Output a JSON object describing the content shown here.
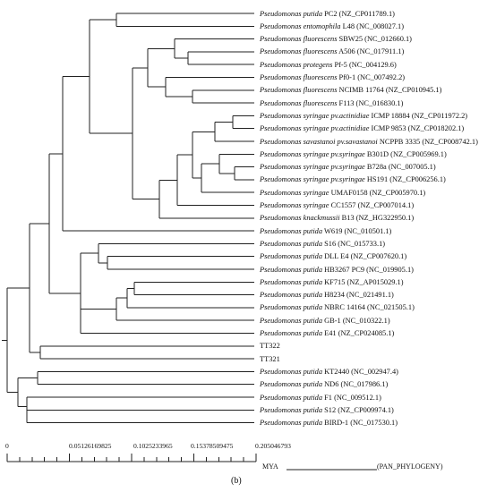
{
  "leaves": [
    {
      "genus": "Pseudomonas",
      "species": "putida",
      "strain": "PC2 (NZ_CP011789.1)"
    },
    {
      "genus": "Pseudomonas",
      "species": "entomophila",
      "strain": "L48 (NC_008027.1)"
    },
    {
      "genus": "Pseudomonas",
      "species": "fluorescens",
      "strain": "SBW25 (NC_012660.1)"
    },
    {
      "genus": "Pseudomonas",
      "species": "fluorescens",
      "strain": "A506 (NC_017911.1)"
    },
    {
      "genus": "Pseudomonas",
      "species": "protegens",
      "strain": "Pf-5 (NC_004129.6)"
    },
    {
      "genus": "Pseudomonas",
      "species": "fluorescens",
      "strain": "Pf0-1 (NC_007492.2)"
    },
    {
      "genus": "Pseudomonas",
      "species": "fluorescens",
      "strain": "NCIMB 11764 (NZ_CP010945.1)"
    },
    {
      "genus": "Pseudomonas",
      "species": "fluorescens",
      "strain": "F113 (NC_016830.1)"
    },
    {
      "genus": "Pseudomonas",
      "species": "syringae pv.actinidiae",
      "strain": "ICMP 18884 (NZ_CP011972.2)"
    },
    {
      "genus": "Pseudomonas",
      "species": "syringae pv.actinidiae",
      "strain": "ICMP 9853 (NZ_CP018202.1)"
    },
    {
      "genus": "Pseudomonas",
      "species": "savastanoi pv.savastanoi",
      "strain": "NCPPB 3335 (NZ_CP008742.1)"
    },
    {
      "genus": "Pseudomonas",
      "species": "syringae pv.syringae",
      "strain": "B301D (NZ_CP005969.1)"
    },
    {
      "genus": "Pseudomonas",
      "species": "syringae pv.syringae",
      "strain": "B728a (NC_007005.1)"
    },
    {
      "genus": "Pseudomonas",
      "species": "syringae pv.syringae",
      "strain": "HS191 (NZ_CP006256.1)"
    },
    {
      "genus": "Pseudomonas",
      "species": "syringae",
      "strain": "UMAF0158 (NZ_CP005970.1)"
    },
    {
      "genus": "Pseudomonas",
      "species": "syringae",
      "strain": "CC1557 (NZ_CP007014.1)"
    },
    {
      "genus": "Pseudomonas",
      "species": "knackmussii",
      "strain": "B13 (NZ_HG322950.1)"
    },
    {
      "genus": "Pseudomonas",
      "species": "putida",
      "strain": "W619 (NC_010501.1)"
    },
    {
      "genus": "Pseudomonas",
      "species": "putida",
      "strain": "S16 (NC_015733.1)"
    },
    {
      "genus": "Pseudomonas",
      "species": "putida",
      "strain": "DLL E4 (NZ_CP007620.1)"
    },
    {
      "genus": "Pseudomonas",
      "species": "putida",
      "strain": "HB3267 PC9 (NC_019905.1)"
    },
    {
      "genus": "Pseudomonas",
      "species": "putida",
      "strain": "KF715 (NZ_AP015029.1)"
    },
    {
      "genus": "Pseudomonas",
      "species": "putida",
      "strain": "H8234 (NC_021491.1)"
    },
    {
      "genus": "Pseudomonas",
      "species": "putida",
      "strain": "NBRC 14164 (NC_021505.1)"
    },
    {
      "genus": "Pseudomonas",
      "species": "putida",
      "strain": "GB-1 (NC_010322.1)"
    },
    {
      "genus": "Pseudomonas",
      "species": "putida",
      "strain": "E41 (NZ_CP024085.1)"
    },
    {
      "genus": "",
      "species": "",
      "strain": "TT322"
    },
    {
      "genus": "",
      "species": "",
      "strain": "TT321"
    },
    {
      "genus": "Pseudomonas",
      "species": "putida",
      "strain": "KT2440 (NC_002947.4)"
    },
    {
      "genus": "Pseudomonas",
      "species": "putida",
      "strain": "ND6 (NC_017986.1)"
    },
    {
      "genus": "Pseudomonas",
      "species": "putida",
      "strain": "F1 (NC_009512.1)"
    },
    {
      "genus": "Pseudomonas",
      "species": "putida",
      "strain": "S12 (NZ_CP009974.1)"
    },
    {
      "genus": "Pseudomonas",
      "species": "putida",
      "strain": "BIRD-1 (NC_017530.1)"
    }
  ],
  "scale": {
    "ticks": [
      "0",
      "0.05126169825",
      "0.1025233965",
      "0.15378509475",
      "0.205046793"
    ],
    "unit": "MYA",
    "method": "(PAN_PHYLOGENY)"
  },
  "caption": "(b)"
}
